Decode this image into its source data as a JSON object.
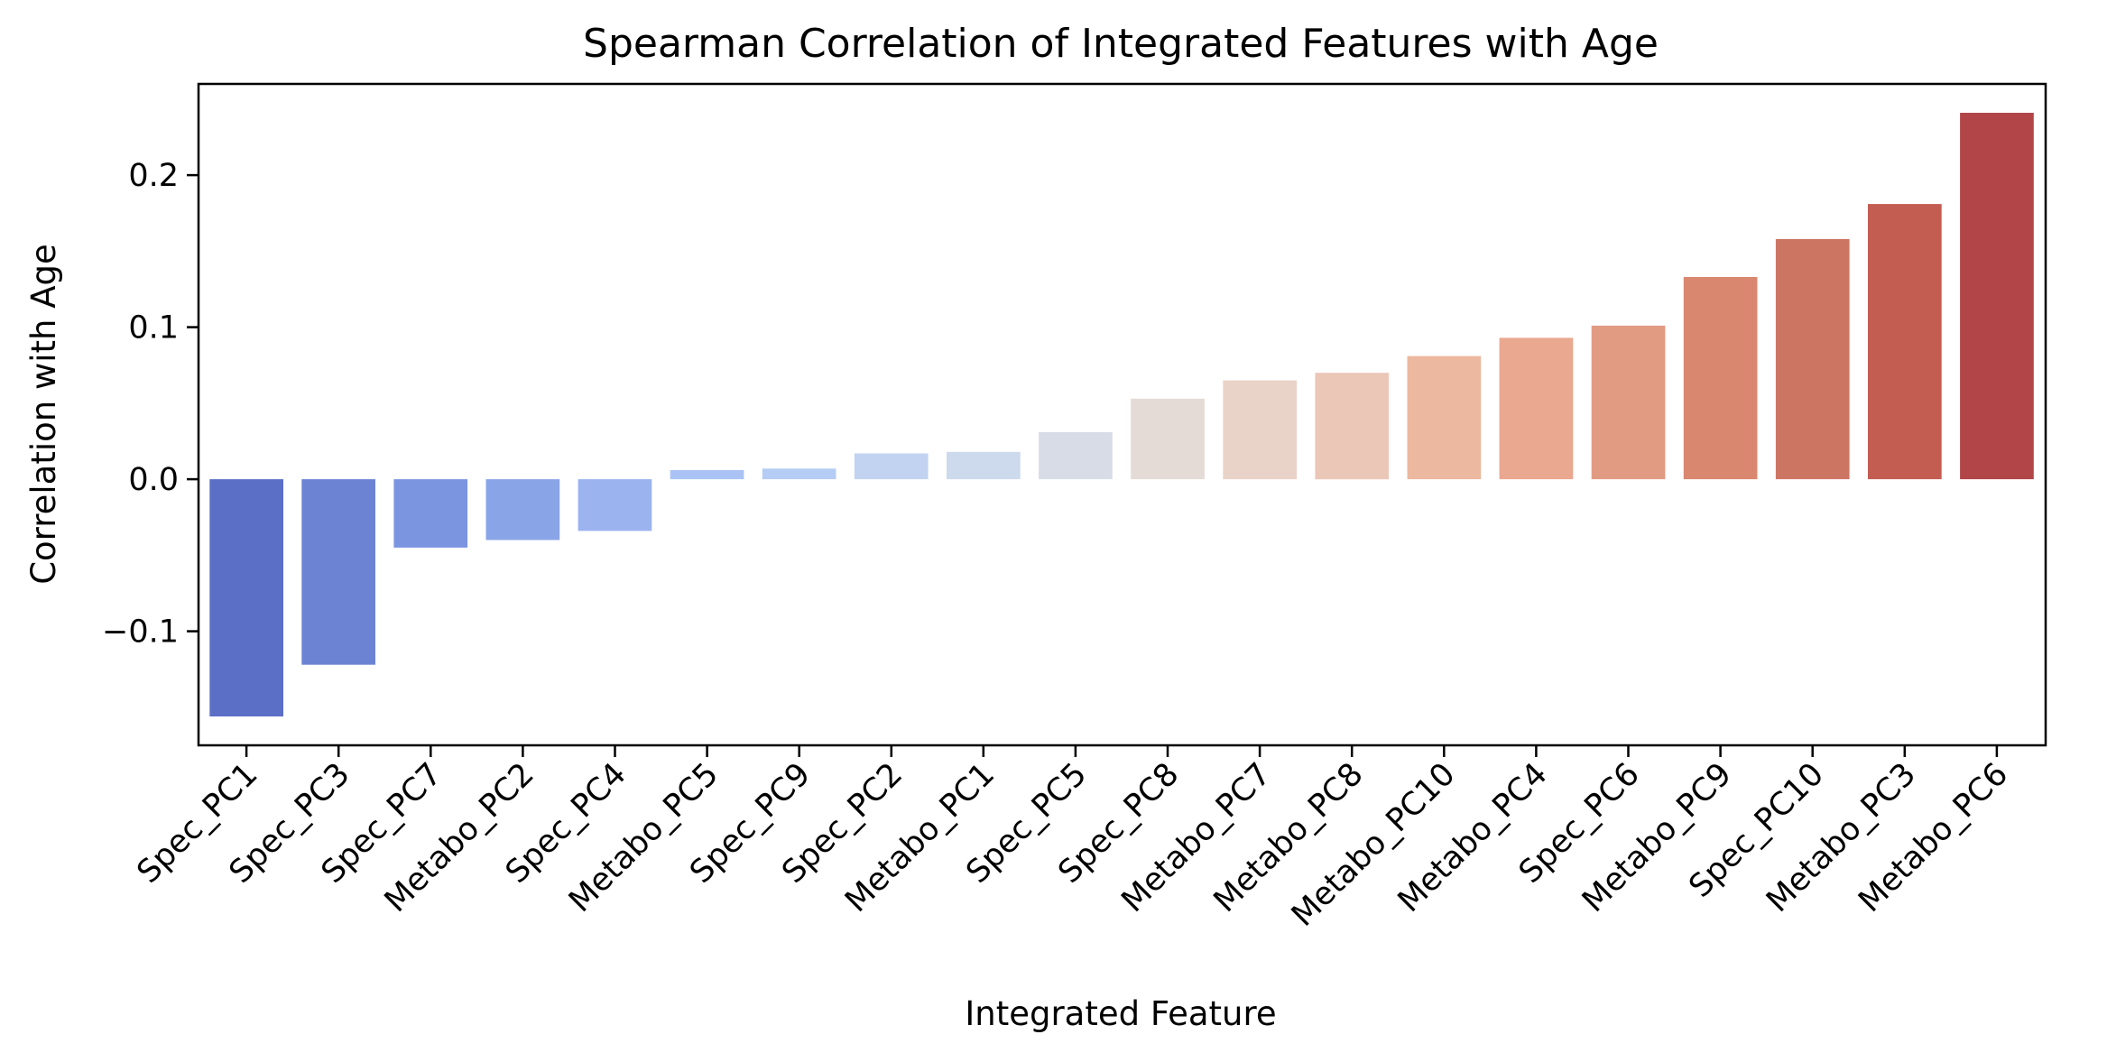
{
  "chart_data": {
    "type": "bar",
    "title": "Spearman Correlation of Integrated Features with Age",
    "xlabel": "Integrated Feature",
    "ylabel": "Correlation with Age",
    "categories": [
      "Spec_PC1",
      "Spec_PC3",
      "Spec_PC7",
      "Metabo_PC2",
      "Spec_PC4",
      "Metabo_PC5",
      "Spec_PC9",
      "Spec_PC2",
      "Metabo_PC1",
      "Spec_PC5",
      "Spec_PC8",
      "Metabo_PC7",
      "Metabo_PC8",
      "Metabo_PC10",
      "Metabo_PC4",
      "Spec_PC6",
      "Metabo_PC9",
      "Spec_PC10",
      "Metabo_PC3",
      "Metabo_PC6"
    ],
    "values": [
      -0.156,
      -0.122,
      -0.045,
      -0.04,
      -0.034,
      0.006,
      0.007,
      0.017,
      0.018,
      0.031,
      0.053,
      0.065,
      0.07,
      0.081,
      0.093,
      0.101,
      0.133,
      0.158,
      0.181,
      0.241
    ],
    "colors": [
      "#5b6fc7",
      "#6c83d3",
      "#7b95e0",
      "#8aa4e8",
      "#9bb3ef",
      "#aac3f4",
      "#b5cdf5",
      "#c2d3f1",
      "#cdd9ec",
      "#d8dce6",
      "#e4dbd6",
      "#e9d2c7",
      "#ebc7b8",
      "#ecb89f",
      "#e9a88f",
      "#e29b83",
      "#d9876f",
      "#cd7563",
      "#c35d52",
      "#b24547"
    ],
    "ylim": [
      -0.175,
      0.26
    ],
    "yticks": [
      -0.1,
      0.0,
      0.1,
      0.2
    ],
    "ytick_labels": [
      "−0.1",
      "0.0",
      "0.1",
      "0.2"
    ],
    "grid": false,
    "legend": "none"
  }
}
